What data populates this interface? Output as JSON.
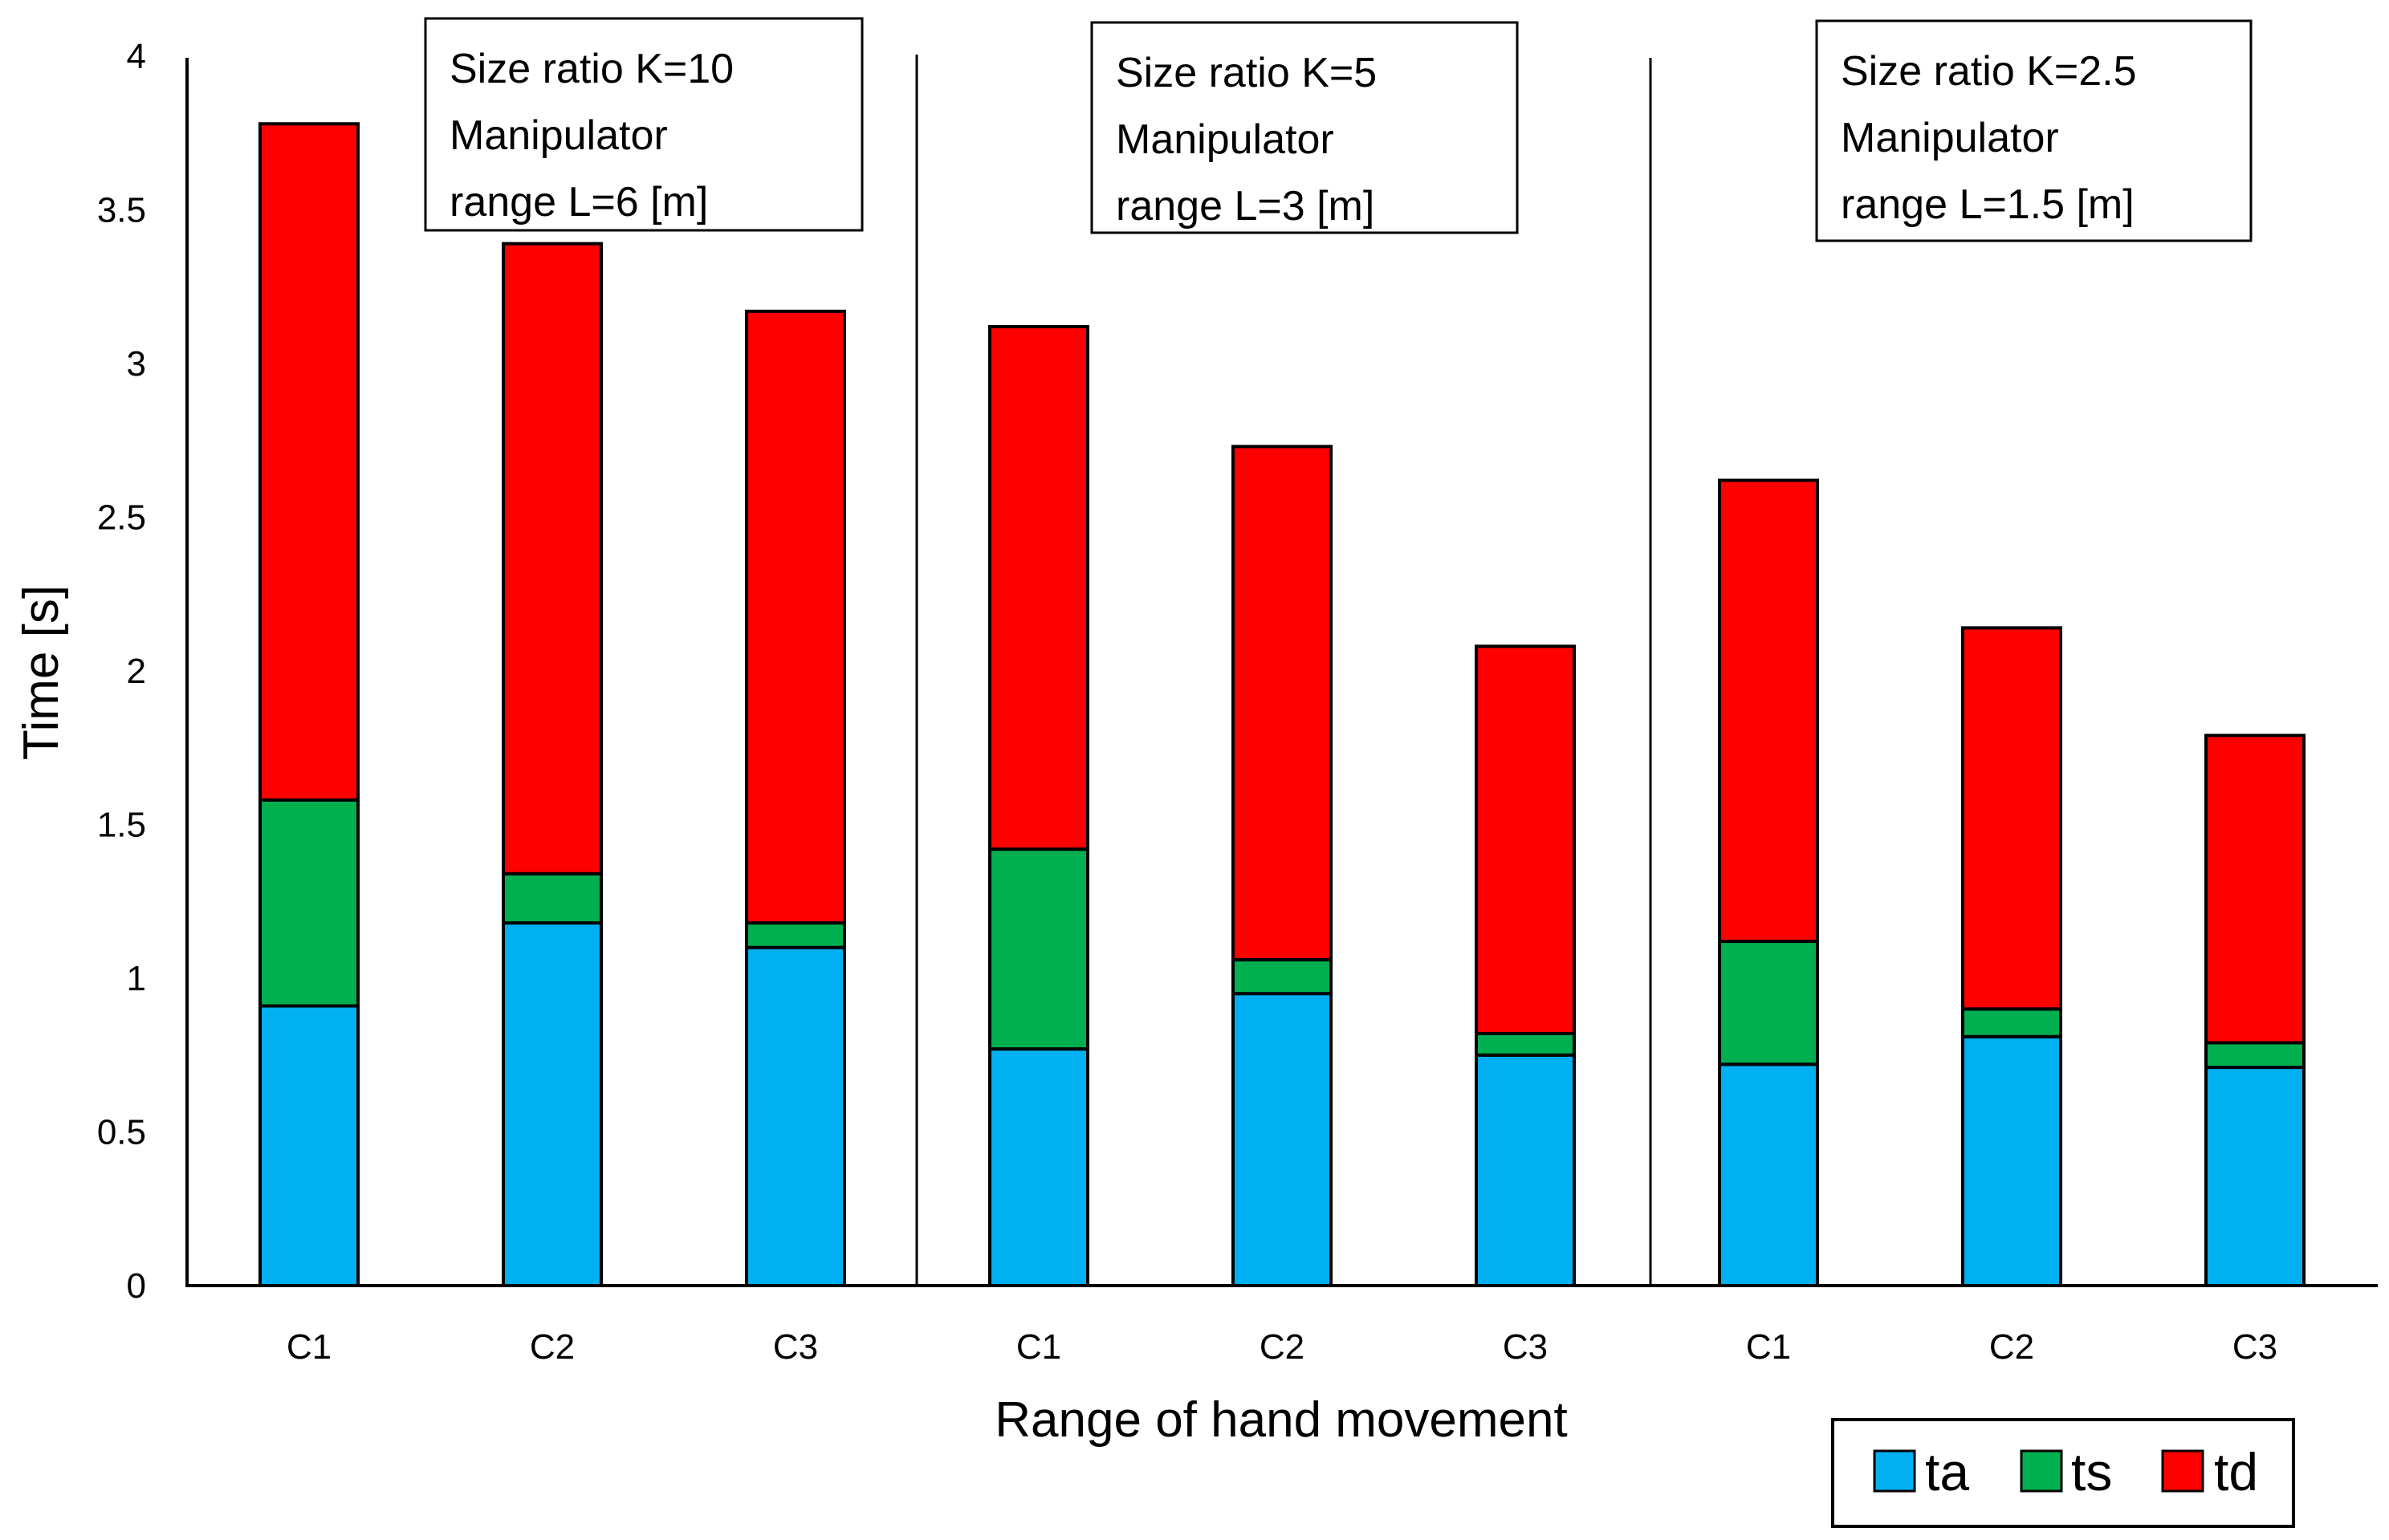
{
  "chart_data": {
    "type": "bar",
    "stacked": true,
    "ylabel": "Time [s]",
    "xlabel": "Range of hand movement",
    "ylim": [
      0,
      4
    ],
    "yticks": [
      "0",
      "0.5",
      "1",
      "1.5",
      "2",
      "2.5",
      "3",
      "3.5",
      "4"
    ],
    "categories": [
      "C1",
      "C2",
      "C3",
      "C1",
      "C2",
      "C3",
      "C1",
      "C2",
      "C3"
    ],
    "groups": [
      {
        "lines": [
          "Size ratio K=10",
          "Manipulator",
          "range L=6 [m]"
        ]
      },
      {
        "lines": [
          "Size ratio K=5",
          "Manipulator",
          "range L=3 [m]"
        ]
      },
      {
        "lines": [
          "Size ratio K=2.5",
          "Manipulator",
          "range L=1.5 [m]"
        ]
      }
    ],
    "series": [
      {
        "name": "ta",
        "color": "#00B0F0",
        "values": [
          0.91,
          1.18,
          1.1,
          0.77,
          0.95,
          0.75,
          0.72,
          0.81,
          0.71
        ]
      },
      {
        "name": "ts",
        "color": "#00B050",
        "values": [
          0.67,
          0.16,
          0.08,
          0.65,
          0.11,
          0.07,
          0.4,
          0.09,
          0.08
        ]
      },
      {
        "name": "td",
        "color": "#FF0000",
        "values": [
          2.2,
          2.05,
          1.99,
          1.7,
          1.67,
          1.26,
          1.5,
          1.24,
          1.0
        ]
      }
    ],
    "legend_position": "bottom-right"
  }
}
